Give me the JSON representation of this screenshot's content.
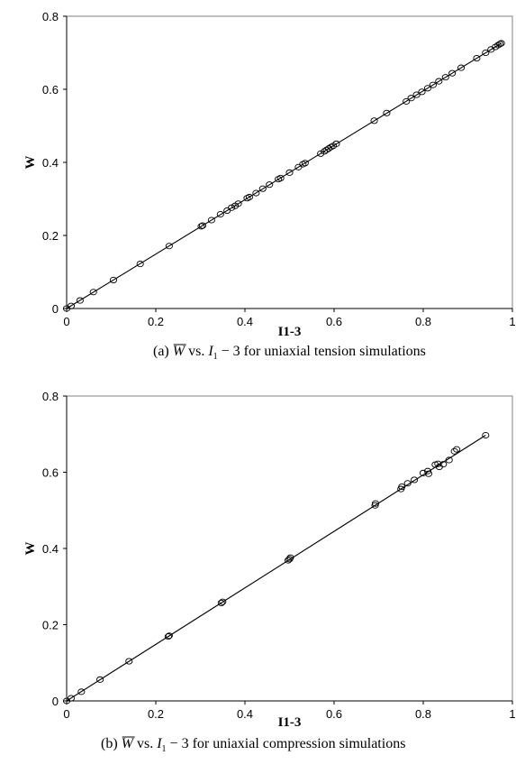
{
  "chart_data": [
    {
      "type": "scatter",
      "panel": "a",
      "xlabel": "I1-3",
      "ylabel": "W",
      "xlim": [
        0,
        1
      ],
      "ylim": [
        0,
        0.8
      ],
      "xticks": [
        "0",
        "0.2",
        "0.4",
        "0.6",
        "0.8",
        "1"
      ],
      "yticks": [
        "0",
        "0.2",
        "0.4",
        "0.6",
        "0.8"
      ],
      "grid": false,
      "trendline": {
        "slope": 0.7446,
        "intercept": 0
      },
      "marker": "open-circle",
      "caption": {
        "prefix": "(a)",
        "w": "W",
        "vs": "vs.",
        "i": "I",
        "sub": "1",
        "minus": "− 3",
        "suffix": "for uniaxial tension simulations"
      },
      "points": [
        {
          "x": 0.0,
          "y": 0.0
        },
        {
          "x": 0.01,
          "y": 0.007
        },
        {
          "x": 0.03,
          "y": 0.022
        },
        {
          "x": 0.06,
          "y": 0.045
        },
        {
          "x": 0.105,
          "y": 0.078
        },
        {
          "x": 0.165,
          "y": 0.122
        },
        {
          "x": 0.23,
          "y": 0.171
        },
        {
          "x": 0.302,
          "y": 0.225
        },
        {
          "x": 0.305,
          "y": 0.227
        },
        {
          "x": 0.325,
          "y": 0.242
        },
        {
          "x": 0.345,
          "y": 0.258
        },
        {
          "x": 0.36,
          "y": 0.268
        },
        {
          "x": 0.37,
          "y": 0.276
        },
        {
          "x": 0.378,
          "y": 0.281
        },
        {
          "x": 0.385,
          "y": 0.287
        },
        {
          "x": 0.405,
          "y": 0.302
        },
        {
          "x": 0.41,
          "y": 0.305
        },
        {
          "x": 0.425,
          "y": 0.316
        },
        {
          "x": 0.44,
          "y": 0.328
        },
        {
          "x": 0.455,
          "y": 0.339
        },
        {
          "x": 0.475,
          "y": 0.354
        },
        {
          "x": 0.48,
          "y": 0.357
        },
        {
          "x": 0.5,
          "y": 0.372
        },
        {
          "x": 0.52,
          "y": 0.387
        },
        {
          "x": 0.53,
          "y": 0.395
        },
        {
          "x": 0.535,
          "y": 0.398
        },
        {
          "x": 0.57,
          "y": 0.424
        },
        {
          "x": 0.578,
          "y": 0.43
        },
        {
          "x": 0.583,
          "y": 0.434
        },
        {
          "x": 0.588,
          "y": 0.438
        },
        {
          "x": 0.593,
          "y": 0.442
        },
        {
          "x": 0.598,
          "y": 0.445
        },
        {
          "x": 0.605,
          "y": 0.451
        },
        {
          "x": 0.69,
          "y": 0.514
        },
        {
          "x": 0.718,
          "y": 0.535
        },
        {
          "x": 0.762,
          "y": 0.567
        },
        {
          "x": 0.773,
          "y": 0.576
        },
        {
          "x": 0.785,
          "y": 0.585
        },
        {
          "x": 0.797,
          "y": 0.593
        },
        {
          "x": 0.81,
          "y": 0.603
        },
        {
          "x": 0.822,
          "y": 0.612
        },
        {
          "x": 0.835,
          "y": 0.622
        },
        {
          "x": 0.85,
          "y": 0.633
        },
        {
          "x": 0.865,
          "y": 0.644
        },
        {
          "x": 0.885,
          "y": 0.659
        },
        {
          "x": 0.92,
          "y": 0.685
        },
        {
          "x": 0.94,
          "y": 0.7
        },
        {
          "x": 0.952,
          "y": 0.709
        },
        {
          "x": 0.962,
          "y": 0.716
        },
        {
          "x": 0.968,
          "y": 0.721
        },
        {
          "x": 0.972,
          "y": 0.724
        },
        {
          "x": 0.975,
          "y": 0.726
        }
      ]
    },
    {
      "type": "scatter",
      "panel": "b",
      "xlabel": "I1-3",
      "ylabel": "W",
      "xlim": [
        0,
        1
      ],
      "ylim": [
        0,
        0.8
      ],
      "xticks": [
        "0",
        "0.2",
        "0.4",
        "0.6",
        "0.8",
        "1"
      ],
      "yticks": [
        "0",
        "0.2",
        "0.4",
        "0.6",
        "0.8"
      ],
      "grid": false,
      "trendline": {
        "slope": 0.7415,
        "intercept": 0
      },
      "marker": "open-circle",
      "caption": {
        "prefix": "(b)",
        "w": "W",
        "vs": "vs.",
        "i": "I",
        "sub": "1",
        "minus": "− 3",
        "suffix": "for uniaxial compression simulations"
      },
      "points": [
        {
          "x": 0.0,
          "y": 0.0
        },
        {
          "x": 0.01,
          "y": 0.007
        },
        {
          "x": 0.033,
          "y": 0.024
        },
        {
          "x": 0.075,
          "y": 0.056
        },
        {
          "x": 0.14,
          "y": 0.104
        },
        {
          "x": 0.228,
          "y": 0.169
        },
        {
          "x": 0.23,
          "y": 0.171
        },
        {
          "x": 0.347,
          "y": 0.257
        },
        {
          "x": 0.35,
          "y": 0.26
        },
        {
          "x": 0.497,
          "y": 0.369
        },
        {
          "x": 0.5,
          "y": 0.372
        },
        {
          "x": 0.502,
          "y": 0.376
        },
        {
          "x": 0.692,
          "y": 0.513
        },
        {
          "x": 0.693,
          "y": 0.518
        },
        {
          "x": 0.75,
          "y": 0.556
        },
        {
          "x": 0.752,
          "y": 0.562
        },
        {
          "x": 0.765,
          "y": 0.571
        },
        {
          "x": 0.78,
          "y": 0.58
        },
        {
          "x": 0.8,
          "y": 0.598
        },
        {
          "x": 0.81,
          "y": 0.603
        },
        {
          "x": 0.812,
          "y": 0.596
        },
        {
          "x": 0.827,
          "y": 0.62
        },
        {
          "x": 0.833,
          "y": 0.622
        },
        {
          "x": 0.836,
          "y": 0.614
        },
        {
          "x": 0.845,
          "y": 0.621
        },
        {
          "x": 0.858,
          "y": 0.632
        },
        {
          "x": 0.87,
          "y": 0.655
        },
        {
          "x": 0.875,
          "y": 0.66
        },
        {
          "x": 0.94,
          "y": 0.697
        }
      ]
    }
  ]
}
